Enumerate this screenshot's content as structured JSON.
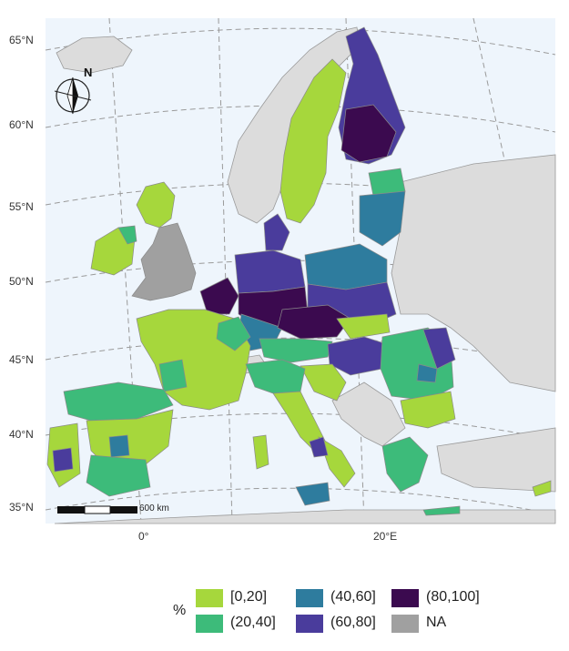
{
  "map": {
    "latitude_labels": [
      "65°N",
      "60°N",
      "55°N",
      "50°N",
      "45°N",
      "40°N",
      "35°N"
    ],
    "longitude_labels": [
      "0°",
      "20°E"
    ],
    "scale_bar": {
      "label": "600 km"
    },
    "north_arrow": {
      "label": "N"
    },
    "colors": {
      "sea": "#eef5fc",
      "non_study": "#dcdcdc",
      "border": "#9a9a9a"
    }
  },
  "legend": {
    "title": "%",
    "items": [
      {
        "label": "[0,20]",
        "color": "#a6d73c"
      },
      {
        "label": "(20,40]",
        "color": "#3dbb7a"
      },
      {
        "label": "(40,60]",
        "color": "#2e7c9e"
      },
      {
        "label": "(60,80]",
        "color": "#4a3c9c"
      },
      {
        "label": "(80,100]",
        "color": "#3b0a4f"
      },
      {
        "label": "NA",
        "color": "#a0a0a0"
      }
    ]
  }
}
